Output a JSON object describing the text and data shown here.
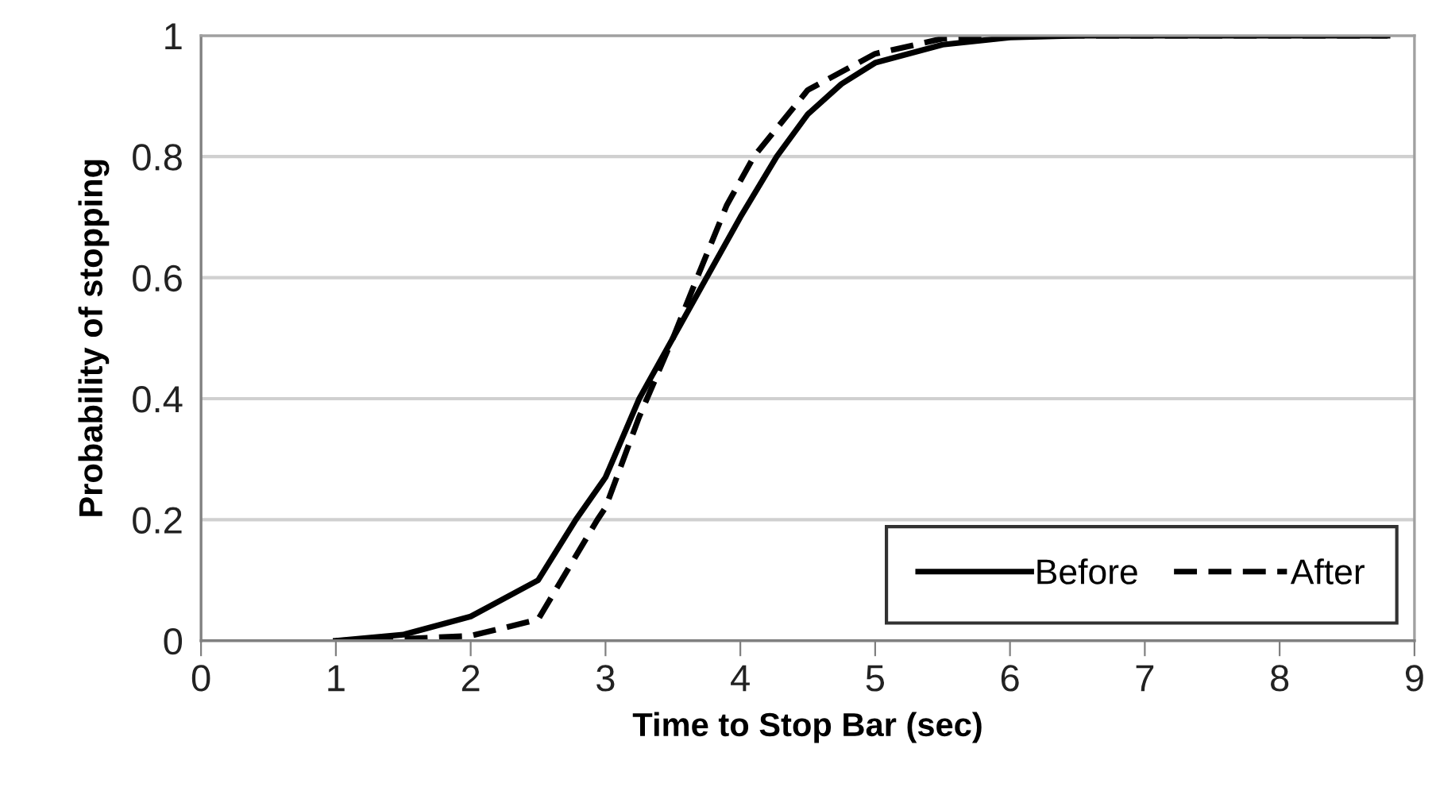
{
  "chart_data": {
    "type": "line",
    "xlabel": "Time to Stop Bar (sec)",
    "ylabel": "Probability of stopping",
    "xlim": [
      0,
      9
    ],
    "xticks": [
      0,
      1,
      2,
      3,
      4,
      5,
      6,
      7,
      8,
      9
    ],
    "ylim": [
      0,
      1
    ],
    "yticks": [
      0,
      0.2,
      0.4,
      0.6,
      0.8,
      1
    ],
    "grid": "y",
    "legend": "bottom right",
    "marker": "none",
    "series": [
      {
        "name": "Before",
        "color": "#000000",
        "line_style": "solid",
        "x": [
          1,
          1.5,
          2,
          2.5,
          2.78,
          3.0,
          3.25,
          3.5,
          3.75,
          4.0,
          4.27,
          4.5,
          4.75,
          5.0,
          5.5,
          6.0,
          6.5,
          8.8
        ],
        "values": [
          0,
          0.01,
          0.04,
          0.1,
          0.2,
          0.27,
          0.4,
          0.5,
          0.6,
          0.7,
          0.8,
          0.87,
          0.92,
          0.955,
          0.985,
          0.997,
          1,
          1
        ]
      },
      {
        "name": "After",
        "color": "#000000",
        "line_style": "dashed",
        "x": [
          1,
          1.5,
          2,
          2.5,
          2.94,
          3.0,
          3.25,
          3.5,
          3.68,
          3.9,
          4.1,
          4.5,
          5.0,
          5.5,
          6.0,
          8.8
        ],
        "values": [
          0,
          0.003,
          0.008,
          0.035,
          0.2,
          0.22,
          0.37,
          0.5,
          0.6,
          0.72,
          0.8,
          0.91,
          0.97,
          0.995,
          1,
          1
        ]
      }
    ]
  }
}
